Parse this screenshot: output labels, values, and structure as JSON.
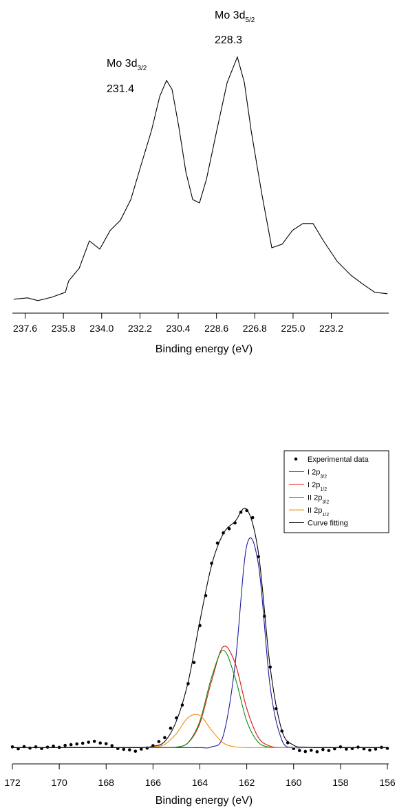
{
  "chart_data": [
    {
      "type": "line",
      "xlabel": "Binding energy (eV)",
      "xlim": [
        238.2,
        220.5
      ],
      "ylim": [
        0,
        100
      ],
      "xticks": [
        237.6,
        235.8,
        {
          "value": 234,
          "label": "234.0"
        },
        232.2,
        230.4,
        228.6,
        226.8,
        {
          "value": 225,
          "label": "225.0"
        },
        223.2
      ],
      "x": [
        238.14,
        237.49,
        237.0,
        236.36,
        235.71,
        235.55,
        235.06,
        234.58,
        234.09,
        233.6,
        233.12,
        232.63,
        232.15,
        231.66,
        231.27,
        230.95,
        230.69,
        230.37,
        230.04,
        229.72,
        229.4,
        229.07,
        228.59,
        228.1,
        227.62,
        227.29,
        226.97,
        226.48,
        226.0,
        225.51,
        225.03,
        224.54,
        224.06,
        223.57,
        222.92,
        222.28,
        221.63,
        221.15,
        220.56
      ],
      "series": [
        {
          "color": "#000000",
          "values": [
            6.3,
            6.8,
            5.8,
            7.0,
            8.8,
            13.0,
            17.5,
            27.5,
            24.5,
            31.3,
            35.0,
            42.5,
            55.0,
            67.5,
            80.0,
            85.8,
            82.5,
            68.8,
            52.5,
            42.5,
            41.3,
            50.0,
            67.5,
            85.0,
            94.3,
            85.0,
            67.5,
            45.0,
            25.0,
            26.3,
            31.3,
            33.8,
            33.8,
            27.5,
            20.0,
            15.0,
            11.3,
            8.8,
            8.3
          ]
        }
      ],
      "annotations": [
        {
          "text": "Mo 3d",
          "subscript": "3/2",
          "label": "231.4"
        },
        {
          "text": "Mo 3d",
          "subscript": "5/2",
          "label": "228.3"
        }
      ]
    },
    {
      "type": "line",
      "xlabel": "Binding energy (eV)",
      "smooth": true,
      "legend": "top-right",
      "xlim": [
        172,
        156
      ],
      "ylim": [
        -5,
        100
      ],
      "xticks": [
        172,
        170,
        168,
        166,
        164,
        162,
        160,
        158,
        156
      ],
      "series": [
        {
          "name": "Experimental data",
          "style": "dots",
          "color": "#000000",
          "x": [
            172,
            171.75,
            171.5,
            171.25,
            171,
            170.75,
            170.5,
            170.25,
            170,
            169.75,
            169.5,
            169.25,
            169,
            168.75,
            168.5,
            168.25,
            168,
            167.75,
            167.5,
            167.25,
            167,
            166.75,
            166.5,
            166.25,
            166,
            165.75,
            165.5,
            165.25,
            165,
            164.75,
            164.5,
            164.25,
            164,
            163.75,
            163.5,
            163.25,
            163,
            162.75,
            162.5,
            162.25,
            162,
            161.75,
            161.5,
            161.25,
            161,
            160.75,
            160.5,
            160.25,
            160,
            159.75,
            159.5,
            159.25,
            159,
            158.75,
            158.5,
            158.25,
            158,
            157.75,
            157.5,
            157.25,
            157,
            156.75,
            156.5,
            156.25,
            156
          ],
          "values": [
            0.3,
            -0.5,
            0.4,
            -0.2,
            0.3,
            -0.4,
            0.2,
            0.6,
            0.1,
            0.9,
            1.2,
            1.5,
            1.8,
            2.2,
            2.6,
            1.9,
            1.6,
            0.8,
            -0.4,
            -0.7,
            -0.9,
            -1.5,
            -0.6,
            -0.2,
            0.8,
            2.5,
            4.1,
            8.0,
            12.2,
            17.5,
            26.3,
            35.0,
            50.2,
            62.5,
            75.8,
            84.1,
            88.3,
            90.0,
            92.4,
            96.8,
            97.5,
            94.6,
            78.5,
            54.0,
            33.1,
            16.0,
            6.8,
            2.0,
            -0.4,
            -1.2,
            -1.6,
            -1.1,
            -1.7,
            -0.8,
            -1.2,
            -0.5,
            0.3,
            -0.6,
            -0.4,
            0.2,
            -0.5,
            -1.0,
            -0.6,
            0.1,
            -0.3
          ]
        },
        {
          "name": "I 2p",
          "subscript": "3/2",
          "color": "#1c1ca0",
          "x": [
            172,
            171.5,
            171,
            170.5,
            170,
            169.5,
            169,
            168.5,
            168,
            167.5,
            167,
            166.5,
            166,
            165.5,
            165,
            164.5,
            164,
            163.5,
            163,
            162.5,
            162,
            161.5,
            161,
            160.5,
            160,
            159.5,
            159,
            158.5,
            158,
            157.5,
            157,
            156.5,
            156
          ],
          "values": [
            0,
            0,
            0,
            0,
            0,
            0,
            0,
            0,
            0,
            0,
            0,
            0,
            0,
            0,
            0,
            0,
            0,
            0.3,
            5.0,
            33.8,
            83.1,
            75.2,
            25.0,
            3.1,
            0.1,
            0,
            0,
            0,
            0,
            0,
            0,
            0,
            0
          ]
        },
        {
          "name": "I 2p",
          "subscript": "1/2",
          "color": "#e01010",
          "x": [
            172,
            171.5,
            171,
            170.5,
            170,
            169.5,
            169,
            168.5,
            168,
            167.5,
            167,
            166.5,
            166,
            165.5,
            165,
            164.5,
            164,
            163.5,
            163,
            162.5,
            162,
            161.5,
            161,
            160.5,
            160,
            159.5,
            159,
            158.5,
            158,
            157.5,
            157,
            156.5,
            156
          ],
          "values": [
            0,
            0,
            0,
            0,
            0,
            0,
            0,
            0,
            0,
            0,
            0,
            0,
            0,
            0,
            0.2,
            2.0,
            10.0,
            27.4,
            41.5,
            34.8,
            16.1,
            4.1,
            0.6,
            0,
            0,
            0,
            0,
            0,
            0,
            0,
            0,
            0,
            0
          ]
        },
        {
          "name": "II 2p",
          "subscript": "3/2",
          "color": "#108a10",
          "x": [
            172,
            171.5,
            171,
            170.5,
            170,
            169.5,
            169,
            168.5,
            168,
            167.5,
            167,
            166.5,
            166,
            165.5,
            165,
            164.5,
            164,
            163.5,
            163,
            162.5,
            162,
            161.5,
            161,
            160.5,
            160,
            159.5,
            159,
            158.5,
            158,
            157.5,
            157,
            156.5,
            156
          ],
          "values": [
            0,
            0,
            0,
            0,
            0,
            0,
            0,
            0,
            0,
            0,
            0,
            0,
            0,
            0,
            0.2,
            2.1,
            10.9,
            28.9,
            40.0,
            28.9,
            10.9,
            2.1,
            0.2,
            0,
            0,
            0,
            0,
            0,
            0,
            0,
            0,
            0,
            0
          ]
        },
        {
          "name": "II 2p",
          "subscript": "1/2",
          "color": "#f08c00",
          "x": [
            172,
            171.5,
            171,
            170.5,
            170,
            169.5,
            169,
            168.5,
            168,
            167.5,
            167,
            166.5,
            166,
            165.5,
            165,
            164.5,
            164,
            163.5,
            163,
            162.5,
            162,
            161.5,
            161,
            160.5,
            160,
            159.5,
            159,
            158.5,
            158,
            157.5,
            157,
            156.5,
            156
          ],
          "values": [
            0,
            0,
            0,
            0,
            0,
            0,
            0,
            0,
            0,
            0,
            0,
            0,
            0.2,
            1.3,
            5.8,
            12.4,
            13.2,
            7.1,
            1.9,
            0.3,
            0,
            0,
            0,
            0,
            0,
            0,
            0,
            0,
            0,
            0,
            0,
            0,
            0
          ]
        },
        {
          "name": "Curve fitting",
          "color": "#000000",
          "x": [
            172,
            171.5,
            171,
            170.5,
            170,
            169.5,
            169,
            168.5,
            168,
            167.5,
            167,
            166.5,
            166,
            165.5,
            165,
            164.5,
            164,
            163.5,
            163,
            162.5,
            162,
            161.5,
            161,
            160.5,
            160,
            159.5,
            159,
            158.5,
            158,
            157.5,
            157,
            156.5,
            156
          ],
          "values": [
            0,
            0,
            0,
            0,
            0,
            0,
            0,
            0,
            0,
            0,
            0,
            0,
            0.5,
            2.5,
            11,
            27,
            52,
            75,
            88,
            93,
            98,
            80,
            33,
            7,
            1,
            0.2,
            0,
            0,
            0,
            0,
            0,
            0,
            0
          ]
        }
      ]
    }
  ]
}
